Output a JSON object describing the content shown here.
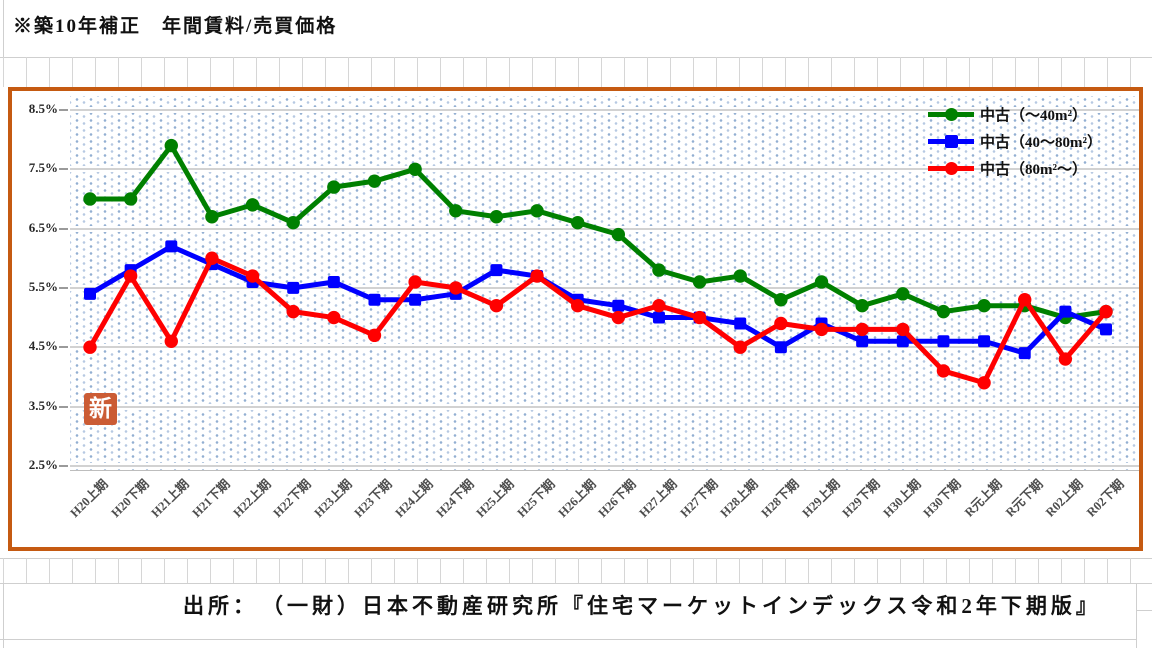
{
  "sheet": {
    "title": "※築10年補正　年間賃料/売買価格",
    "source": "出所：　（一財）日本不動産研究所『住宅マーケットインデックス令和2年下期版』"
  },
  "stamp": {
    "label": "新",
    "color": "#cb5c35"
  },
  "chart": {
    "border_color": "#c55a11",
    "legend_entries": [
      "中古（～40m²）",
      "中古（40～80m²）",
      "中古（80m²～）"
    ]
  },
  "chart_data": {
    "type": "line",
    "title": "",
    "xlabel": "",
    "ylabel": "",
    "ylim": [
      2.5,
      8.5
    ],
    "ytick_step": 1.0,
    "ytick_labels": [
      "8.5%",
      "7.5%",
      "6.5%",
      "5.5%",
      "4.5%",
      "3.5%",
      "2.5%"
    ],
    "grid": true,
    "legend_position": "top-right",
    "categories": [
      "H20上期",
      "H20下期",
      "H21上期",
      "H21下期",
      "H22上期",
      "H22下期",
      "H23上期",
      "H23下期",
      "H24上期",
      "H24下期",
      "H25上期",
      "H25下期",
      "H26上期",
      "H26下期",
      "H27上期",
      "H27下期",
      "H28上期",
      "H28下期",
      "H29上期",
      "H29下期",
      "H30上期",
      "H30下期",
      "R元上期",
      "R元下期",
      "R02上期",
      "R02下期"
    ],
    "unit": "%",
    "series": [
      {
        "key": "used-under-40",
        "name": "中古（～40m²）",
        "color": "#008000",
        "marker": "circle",
        "values": [
          7.0,
          7.0,
          7.9,
          6.7,
          6.9,
          6.6,
          7.2,
          7.3,
          7.5,
          6.8,
          6.7,
          6.8,
          6.6,
          6.4,
          5.8,
          5.6,
          5.7,
          5.3,
          5.6,
          5.2,
          5.4,
          5.1,
          5.2,
          5.2,
          5.0,
          5.1
        ]
      },
      {
        "key": "used-40-80",
        "name": "中古（40～80m²）",
        "color": "#0000ff",
        "marker": "square",
        "values": [
          5.4,
          5.8,
          6.2,
          5.9,
          5.6,
          5.5,
          5.6,
          5.3,
          5.3,
          5.4,
          5.8,
          5.7,
          5.3,
          5.2,
          5.0,
          5.0,
          4.9,
          4.5,
          4.9,
          4.6,
          4.6,
          4.6,
          4.6,
          4.4,
          5.1,
          4.8
        ]
      },
      {
        "key": "used-over-80",
        "name": "中古（80m²～）",
        "color": "#ff0000",
        "marker": "circle",
        "values": [
          4.5,
          5.7,
          4.6,
          6.0,
          5.7,
          5.1,
          5.0,
          4.7,
          5.6,
          5.5,
          5.2,
          5.7,
          5.2,
          5.0,
          5.2,
          5.0,
          4.5,
          4.9,
          4.8,
          4.8,
          4.8,
          4.1,
          3.9,
          5.3,
          4.3,
          5.1
        ]
      }
    ]
  }
}
